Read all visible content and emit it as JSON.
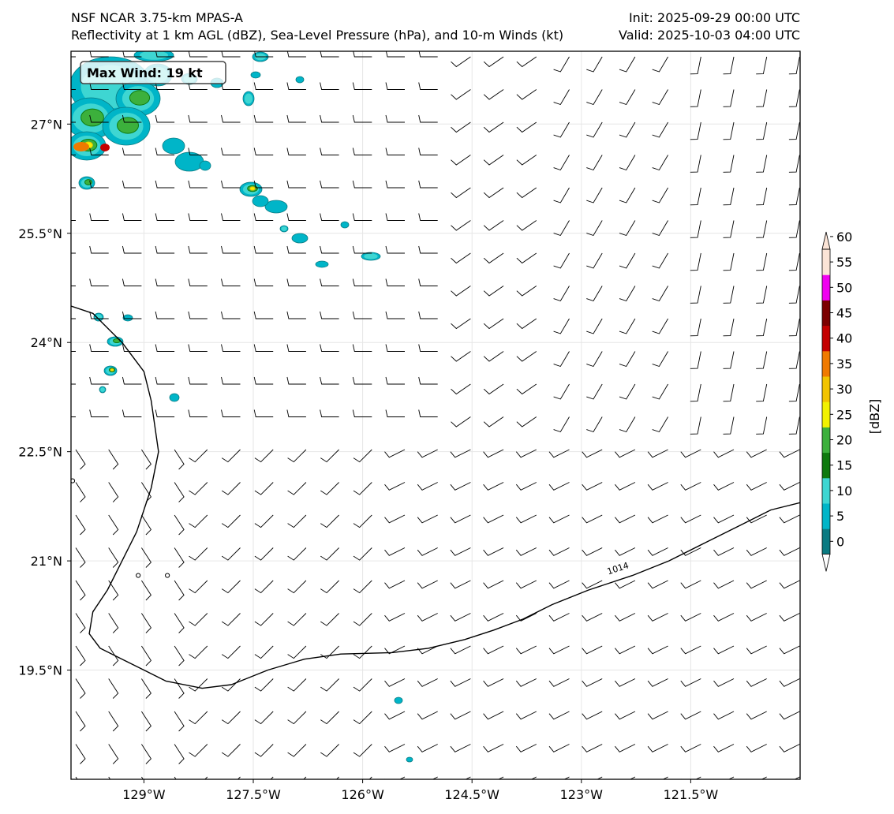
{
  "header": {
    "model": "NSF NCAR 3.75-km MPAS-A",
    "description": "Reflectivity at 1 km AGL (dBZ), Sea-Level Pressure (hPa), and 10-m Winds (kt)",
    "init": "Init: 2025-09-29 00:00 UTC",
    "valid": "Valid: 2025-10-03 04:00 UTC"
  },
  "annotation": {
    "max_wind": "Max Wind: 19 kt"
  },
  "map": {
    "lon_range": [
      -130.0,
      -120.0
    ],
    "lat_range": [
      18.0,
      28.0
    ],
    "lon_ticks": [
      {
        "value": -129.0,
        "label": "129°W"
      },
      {
        "value": -127.5,
        "label": "127.5°W"
      },
      {
        "value": -126.0,
        "label": "126°W"
      },
      {
        "value": -124.5,
        "label": "124.5°W"
      },
      {
        "value": -123.0,
        "label": "123°W"
      },
      {
        "value": -121.5,
        "label": "121.5°W"
      }
    ],
    "lat_ticks": [
      {
        "value": 27.0,
        "label": "27°N"
      },
      {
        "value": 25.5,
        "label": "25.5°N"
      },
      {
        "value": 24.0,
        "label": "24°N"
      },
      {
        "value": 22.5,
        "label": "22.5°N"
      },
      {
        "value": 21.0,
        "label": "21°N"
      },
      {
        "value": 19.5,
        "label": "19.5°N"
      }
    ],
    "isobar": {
      "label": "1014",
      "label_at": [
        -122.5,
        20.9
      ],
      "points": [
        [
          -130.0,
          24.5
        ],
        [
          -129.7,
          24.4
        ],
        [
          -129.3,
          24.0
        ],
        [
          -129.0,
          23.6
        ],
        [
          -128.9,
          23.2
        ],
        [
          -128.8,
          22.5
        ],
        [
          -128.9,
          22.0
        ],
        [
          -129.1,
          21.4
        ],
        [
          -129.3,
          21.0
        ],
        [
          -129.5,
          20.6
        ],
        [
          -129.7,
          20.3
        ],
        [
          -129.75,
          20.0
        ],
        [
          -129.6,
          19.8
        ],
        [
          -129.3,
          19.65
        ],
        [
          -129.0,
          19.5
        ],
        [
          -128.7,
          19.35
        ],
        [
          -128.2,
          19.25
        ],
        [
          -127.8,
          19.3
        ],
        [
          -127.3,
          19.5
        ],
        [
          -126.8,
          19.65
        ],
        [
          -126.3,
          19.72
        ],
        [
          -125.6,
          19.74
        ],
        [
          -125.1,
          19.8
        ],
        [
          -124.6,
          19.92
        ],
        [
          -124.2,
          20.05
        ],
        [
          -123.8,
          20.2
        ],
        [
          -123.4,
          20.4
        ],
        [
          -122.9,
          20.6
        ],
        [
          -122.3,
          20.8
        ],
        [
          -121.8,
          21.0
        ],
        [
          -121.3,
          21.25
        ],
        [
          -120.8,
          21.5
        ],
        [
          -120.4,
          21.7
        ],
        [
          -120.0,
          21.8
        ]
      ]
    },
    "small_contours": [
      [
        -130.0,
        22.1
      ],
      [
        -129.1,
        20.8
      ],
      [
        -128.7,
        20.8
      ]
    ],
    "max_wind_kt": 19
  },
  "colorbar": {
    "label": "[dBZ]",
    "ticks": [
      "0",
      "5",
      "10",
      "15",
      "20",
      "25",
      "30",
      "35",
      "40",
      "45",
      "50",
      "55",
      "60"
    ],
    "colors": [
      "#0b7b82",
      "#00b5c8",
      "#3ed6d2",
      "#0e7a0e",
      "#3cb03c",
      "#f2f200",
      "#f2c400",
      "#f07a00",
      "#c40000",
      "#7c0000",
      "#f000f0",
      "#fbe4d6"
    ]
  }
}
